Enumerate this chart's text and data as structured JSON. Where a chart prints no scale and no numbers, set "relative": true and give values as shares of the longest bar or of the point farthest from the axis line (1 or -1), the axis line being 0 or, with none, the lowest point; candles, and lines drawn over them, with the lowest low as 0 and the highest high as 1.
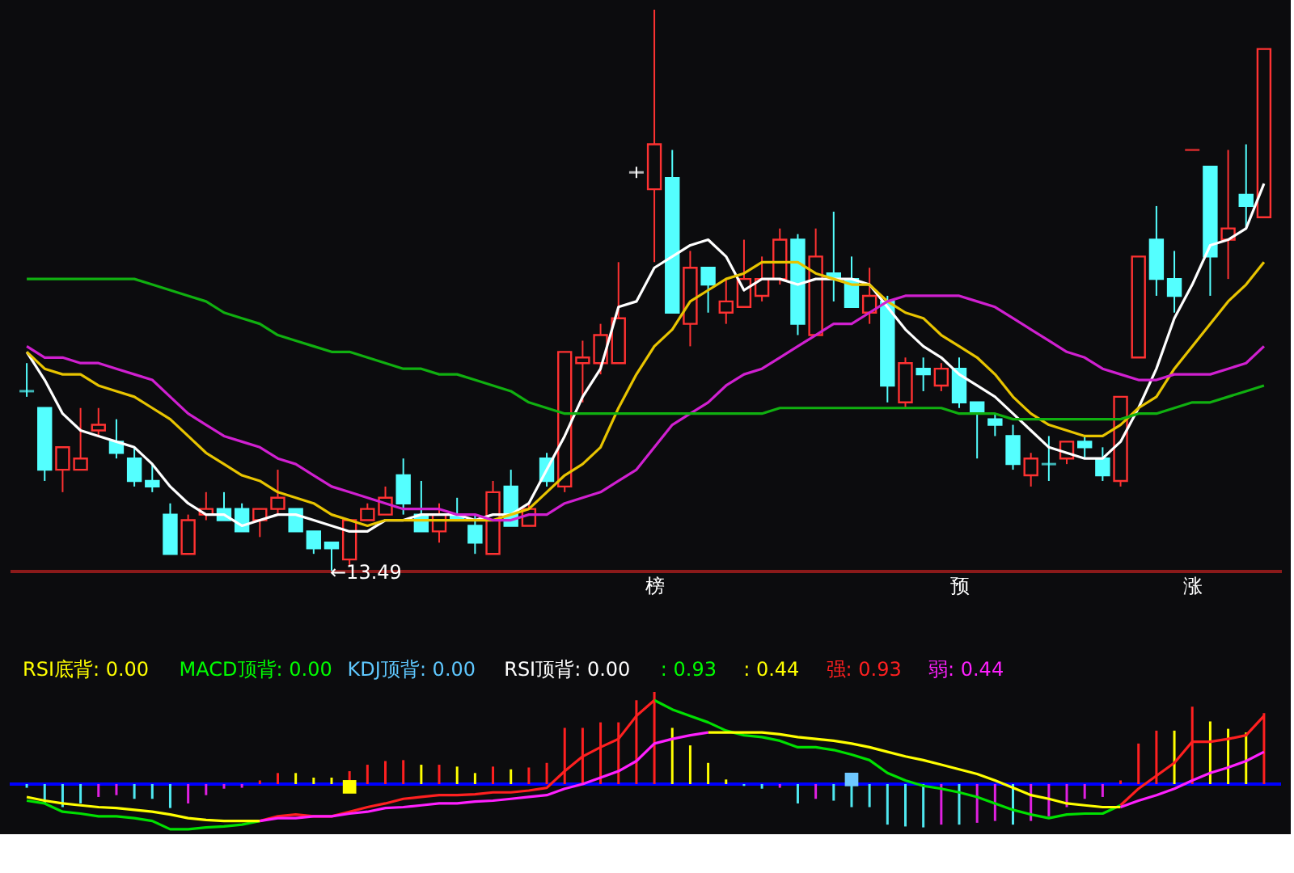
{
  "chart_data": [
    {
      "type": "candlestick",
      "relative": true,
      "categories": [
        null,
        null,
        null,
        null,
        null,
        null,
        null,
        null,
        null,
        null,
        null,
        null,
        null,
        null,
        null,
        null,
        null,
        null,
        null,
        null,
        null,
        null,
        null,
        null,
        null,
        null,
        null,
        null,
        null,
        null,
        null,
        null,
        null,
        null,
        null,
        "榜",
        null,
        null,
        null,
        null,
        null,
        null,
        null,
        null,
        null,
        null,
        null,
        null,
        null,
        null,
        null,
        null,
        "预",
        null,
        null,
        null,
        null,
        null,
        null,
        null,
        null,
        null,
        null,
        null,
        null,
        "涨",
        null,
        null,
        null,
        null
      ],
      "ohlc": [
        [
          0.32,
          0.37,
          0.31,
          0.32
        ],
        [
          0.29,
          0.29,
          0.16,
          0.18
        ],
        [
          0.18,
          0.22,
          0.14,
          0.22
        ],
        [
          0.18,
          0.29,
          0.18,
          0.2
        ],
        [
          0.25,
          0.29,
          0.24,
          0.26
        ],
        [
          0.23,
          0.27,
          0.2,
          0.21
        ],
        [
          0.2,
          0.22,
          0.15,
          0.16
        ],
        [
          0.16,
          0.19,
          0.14,
          0.15
        ],
        [
          0.1,
          0.12,
          0.03,
          0.03
        ],
        [
          0.03,
          0.1,
          0.03,
          0.09
        ],
        [
          0.1,
          0.14,
          0.09,
          0.11
        ],
        [
          0.11,
          0.14,
          0.09,
          0.09
        ],
        [
          0.11,
          0.12,
          0.07,
          0.07
        ],
        [
          0.09,
          0.11,
          0.06,
          0.11
        ],
        [
          0.11,
          0.18,
          0.1,
          0.13
        ],
        [
          0.11,
          0.11,
          0.07,
          0.07
        ],
        [
          0.07,
          0.07,
          0.03,
          0.04
        ],
        [
          0.05,
          0.05,
          0,
          0.04
        ],
        [
          0.02,
          0.09,
          0.01,
          0.09
        ],
        [
          0.09,
          0.12,
          0.09,
          0.11
        ],
        [
          0.1,
          0.15,
          0.1,
          0.13
        ],
        [
          0.17,
          0.2,
          0.1,
          0.12
        ],
        [
          0.1,
          0.16,
          0.07,
          0.07
        ],
        [
          0.07,
          0.12,
          0.05,
          0.1
        ],
        [
          0.1,
          0.13,
          0.09,
          0.09
        ],
        [
          0.08,
          0.1,
          0.03,
          0.05
        ],
        [
          0.03,
          0.16,
          0.03,
          0.14
        ],
        [
          0.15,
          0.18,
          0.08,
          0.08
        ],
        [
          0.08,
          0.12,
          0.08,
          0.11
        ],
        [
          0.2,
          0.21,
          0.15,
          0.16
        ],
        [
          0.15,
          0.39,
          0.14,
          0.39
        ],
        [
          0.37,
          0.41,
          0.3,
          0.38
        ],
        [
          0.37,
          0.44,
          0.35,
          0.42
        ],
        [
          0.37,
          0.55,
          0.37,
          0.45
        ],
        [
          0.71,
          0.72,
          0.7,
          0.71
        ],
        [
          0.68,
          1,
          0.55,
          0.76
        ],
        [
          0.7,
          0.75,
          0.46,
          0.46
        ],
        [
          0.44,
          0.57,
          0.4,
          0.54
        ],
        [
          0.54,
          0.54,
          0.46,
          0.51
        ],
        [
          0.46,
          0.52,
          0.44,
          0.48
        ],
        [
          0.47,
          0.59,
          0.47,
          0.52
        ],
        [
          0.49,
          0.56,
          0.48,
          0.52
        ],
        [
          0.52,
          0.61,
          0.51,
          0.59
        ],
        [
          0.59,
          0.6,
          0.42,
          0.44
        ],
        [
          0.42,
          0.61,
          0.42,
          0.56
        ],
        [
          0.53,
          0.64,
          0.48,
          0.52
        ],
        [
          0.52,
          0.56,
          0.47,
          0.47
        ],
        [
          0.46,
          0.54,
          0.44,
          0.49
        ],
        [
          0.48,
          0.49,
          0.3,
          0.33
        ],
        [
          0.3,
          0.38,
          0.29,
          0.37
        ],
        [
          0.36,
          0.38,
          0.32,
          0.35
        ],
        [
          0.33,
          0.37,
          0.32,
          0.36
        ],
        [
          0.36,
          0.38,
          0.29,
          0.3
        ],
        [
          0.3,
          0.3,
          0.2,
          0.28
        ],
        [
          0.27,
          0.28,
          0.24,
          0.26
        ],
        [
          0.24,
          0.26,
          0.18,
          0.19
        ],
        [
          0.17,
          0.21,
          0.15,
          0.2
        ],
        [
          0.19,
          0.24,
          0.16,
          0.19
        ],
        [
          0.2,
          0.23,
          0.19,
          0.23
        ],
        [
          0.23,
          0.24,
          0.2,
          0.22
        ],
        [
          0.2,
          0.22,
          0.16,
          0.17
        ],
        [
          0.16,
          0.31,
          0.15,
          0.31
        ],
        [
          0.38,
          0.56,
          0.38,
          0.56
        ],
        [
          0.59,
          0.65,
          0.49,
          0.52
        ],
        [
          0.52,
          0.57,
          0.46,
          0.49
        ],
        [
          0.75,
          0.75,
          0.75,
          0.75
        ],
        [
          0.72,
          0.72,
          0.49,
          0.56
        ],
        [
          0.59,
          0.75,
          0.52,
          0.61
        ],
        [
          0.67,
          0.76,
          0.61,
          0.65
        ],
        [
          0.63,
          0.93,
          0.63,
          0.93
        ]
      ],
      "colors": [
        "#54ffff",
        "#54ffff",
        "#ff3232",
        "#ff3232",
        "#ff3232",
        "#54ffff",
        "#54ffff",
        "#54ffff",
        "#54ffff",
        "#ff3232",
        "#ff3232",
        "#54ffff",
        "#54ffff",
        "#ff3232",
        "#ff3232",
        "#54ffff",
        "#54ffff",
        "#54ffff",
        "#ff3232",
        "#ff3232",
        "#ff3232",
        "#54ffff",
        "#54ffff",
        "#ff3232",
        "#54ffff",
        "#54ffff",
        "#ff3232",
        "#54ffff",
        "#ff3232",
        "#54ffff",
        "#ff3232",
        "#ff3232",
        "#ff3232",
        "#ff3232",
        "#ffffff",
        "#ff3232",
        "#54ffff",
        "#ff3232",
        "#54ffff",
        "#ff3232",
        "#ff3232",
        "#ff3232",
        "#ff3232",
        "#54ffff",
        "#ff3232",
        "#54ffff",
        "#54ffff",
        "#ff3232",
        "#54ffff",
        "#ff3232",
        "#54ffff",
        "#ff3232",
        "#54ffff",
        "#54ffff",
        "#54ffff",
        "#54ffff",
        "#ff3232",
        "#54ffff",
        "#ff3232",
        "#54ffff",
        "#54ffff",
        "#ff3232",
        "#ff3232",
        "#54ffff",
        "#54ffff",
        "#ff3232",
        "#54ffff",
        "#ff3232",
        "#54ffff",
        "#ff3232"
      ],
      "series": [
        {
          "type": "line",
          "color": "#ffffff",
          "values": [
            0.39,
            0.34,
            0.28,
            0.25,
            0.24,
            0.23,
            0.22,
            0.19,
            0.15,
            0.12,
            0.1,
            0.1,
            0.08,
            0.09,
            0.1,
            0.1,
            0.09,
            0.08,
            0.07,
            0.07,
            0.09,
            0.09,
            0.1,
            0.1,
            0.1,
            0.09,
            0.1,
            0.1,
            0.12,
            0.18,
            0.24,
            0.31,
            0.36,
            0.47,
            0.48,
            0.54,
            0.56,
            0.58,
            0.59,
            0.56,
            0.5,
            0.52,
            0.52,
            0.51,
            0.52,
            0.52,
            0.52,
            0.51,
            0.47,
            0.43,
            0.4,
            0.38,
            0.35,
            0.33,
            0.31,
            0.28,
            0.25,
            0.22,
            0.21,
            0.2,
            0.2,
            0.23,
            0.29,
            0.36,
            0.45,
            0.51,
            0.58,
            0.59,
            0.61,
            0.69
          ]
        },
        {
          "type": "line",
          "color": "#e8c400",
          "values": [
            0.39,
            0.36,
            0.35,
            0.35,
            0.33,
            0.32,
            0.31,
            0.29,
            0.27,
            0.24,
            0.21,
            0.19,
            0.17,
            0.16,
            0.14,
            0.13,
            0.12,
            0.1,
            0.09,
            0.08,
            0.09,
            0.09,
            0.09,
            0.09,
            0.09,
            0.09,
            0.09,
            0.1,
            0.11,
            0.14,
            0.17,
            0.19,
            0.22,
            0.29,
            0.35,
            0.4,
            0.43,
            0.48,
            0.5,
            0.52,
            0.53,
            0.55,
            0.55,
            0.55,
            0.53,
            0.52,
            0.51,
            0.51,
            0.48,
            0.46,
            0.45,
            0.42,
            0.4,
            0.38,
            0.35,
            0.31,
            0.28,
            0.26,
            0.25,
            0.24,
            0.24,
            0.26,
            0.29,
            0.31,
            0.36,
            0.4,
            0.44,
            0.48,
            0.51,
            0.55
          ]
        },
        {
          "type": "line",
          "color": "#d020d0",
          "values": [
            0.4,
            0.38,
            0.38,
            0.37,
            0.37,
            0.36,
            0.35,
            0.34,
            0.31,
            0.28,
            0.26,
            0.24,
            0.23,
            0.22,
            0.2,
            0.19,
            0.17,
            0.15,
            0.14,
            0.13,
            0.12,
            0.11,
            0.11,
            0.11,
            0.1,
            0.1,
            0.09,
            0.09,
            0.1,
            0.1,
            0.12,
            0.13,
            0.14,
            0.16,
            0.18,
            0.22,
            0.26,
            0.28,
            0.3,
            0.33,
            0.35,
            0.36,
            0.38,
            0.4,
            0.42,
            0.44,
            0.44,
            0.46,
            0.48,
            0.49,
            0.49,
            0.49,
            0.49,
            0.48,
            0.47,
            0.45,
            0.43,
            0.41,
            0.39,
            0.38,
            0.36,
            0.35,
            0.34,
            0.34,
            0.35,
            0.35,
            0.35,
            0.36,
            0.37,
            0.4
          ]
        },
        {
          "type": "line",
          "color": "#10b010",
          "values": [
            0.52,
            0.52,
            0.52,
            0.52,
            0.52,
            0.52,
            0.52,
            0.51,
            0.5,
            0.49,
            0.48,
            0.46,
            0.45,
            0.44,
            0.42,
            0.41,
            0.4,
            0.39,
            0.39,
            0.38,
            0.37,
            0.36,
            0.36,
            0.35,
            0.35,
            0.34,
            0.33,
            0.32,
            0.3,
            0.29,
            0.28,
            0.28,
            0.28,
            0.28,
            0.28,
            0.28,
            0.28,
            0.28,
            0.28,
            0.28,
            0.28,
            0.28,
            0.29,
            0.29,
            0.29,
            0.29,
            0.29,
            0.29,
            0.29,
            0.29,
            0.29,
            0.29,
            0.28,
            0.28,
            0.28,
            0.27,
            0.27,
            0.27,
            0.27,
            0.27,
            0.27,
            0.27,
            0.28,
            0.28,
            0.29,
            0.3,
            0.3,
            0.31,
            0.32,
            0.33
          ]
        }
      ],
      "annotations": [
        "←13.49"
      ]
    },
    {
      "type": "bar",
      "relative": true,
      "ref_lines": [
        {
          "axis": "y",
          "value": 0,
          "color": "#0000ff"
        }
      ],
      "categories": [
        null,
        null,
        null,
        null,
        null,
        null,
        null,
        null,
        null,
        null,
        null,
        null,
        null,
        null,
        null,
        null,
        null,
        null,
        null,
        null,
        null,
        null,
        null,
        null,
        null,
        null,
        null,
        null,
        null,
        null,
        null,
        null,
        null,
        null,
        null,
        null,
        null,
        null,
        null,
        null,
        null,
        null,
        null,
        null,
        null,
        null,
        null,
        null,
        null,
        null,
        null,
        null,
        null,
        null,
        null,
        null,
        null,
        null,
        null,
        null,
        null,
        null,
        null,
        null,
        null,
        null,
        null,
        null,
        null,
        null
      ],
      "series": [
        {
          "type": "bar",
          "values": [
            -0.04,
            -0.21,
            -0.25,
            -0.21,
            -0.14,
            -0.12,
            -0.16,
            -0.16,
            -0.26,
            -0.21,
            -0.12,
            -0.05,
            -0.04,
            0.04,
            0.12,
            0.12,
            0.07,
            0.07,
            0.14,
            0.21,
            0.25,
            0.26,
            0.21,
            0.21,
            0.19,
            0.12,
            0.19,
            0.16,
            0.18,
            0.23,
            0.61,
            0.61,
            0.67,
            0.67,
            0.91,
            1,
            0.61,
            0.42,
            0.23,
            0.05,
            -0.02,
            -0.05,
            -0.04,
            -0.21,
            -0.16,
            -0.18,
            -0.25,
            -0.25,
            -0.44,
            -0.46,
            -0.47,
            -0.44,
            -0.44,
            -0.42,
            -0.4,
            -0.44,
            -0.4,
            -0.35,
            -0.25,
            -0.16,
            -0.14,
            0.04,
            0.44,
            0.58,
            0.58,
            0.84,
            0.68,
            0.6,
            0.56,
            0.77
          ],
          "colors": [
            "#4fe8f0",
            "#4fe8f0",
            "#4fe8f0",
            "#4fe8f0",
            "#e020e0",
            "#e020e0",
            "#4fe8f0",
            "#4fe8f0",
            "#4fe8f0",
            "#e020e0",
            "#e020e0",
            "#e020e0",
            "#e020e0",
            "#ff2020",
            "#ff2020",
            "#ffff00",
            "#ffff00",
            "#ffff00",
            "#ff2020",
            "#ff2020",
            "#ff2020",
            "#ff2020",
            "#ffff00",
            "#ff2020",
            "#ffff00",
            "#ffff00",
            "#ff2020",
            "#ffff00",
            "#ff2020",
            "#ff2020",
            "#ff2020",
            "#ff2020",
            "#ff2020",
            "#ff2020",
            "#ff2020",
            "#ff2020",
            "#ffff00",
            "#ffff00",
            "#ffff00",
            "#ffff00",
            "#4fe8f0",
            "#4fe8f0",
            "#e020e0",
            "#4fe8f0",
            "#e020e0",
            "#4fe8f0",
            "#4fe8f0",
            "#4fe8f0",
            "#4fe8f0",
            "#4fe8f0",
            "#4fe8f0",
            "#e020e0",
            "#4fe8f0",
            "#e020e0",
            "#e020e0",
            "#4fe8f0",
            "#e020e0",
            "#e020e0",
            "#e020e0",
            "#e020e0",
            "#e020e0",
            "#ff2020",
            "#ff2020",
            "#ff2020",
            "#ffff00",
            "#ff2020",
            "#ffff00",
            "#ffff00",
            "#ffff00",
            "#ff2020"
          ]
        },
        {
          "type": "line",
          "color": "#00e000",
          "values": [
            -0.18,
            -0.21,
            -0.3,
            -0.32,
            -0.35,
            -0.35,
            -0.37,
            -0.4,
            -0.49,
            -0.49,
            -0.47,
            -0.46,
            -0.44,
            -0.4,
            null,
            null,
            null,
            null,
            null,
            null,
            null,
            null,
            null,
            null,
            null,
            null,
            null,
            null,
            null,
            null,
            null,
            null,
            null,
            null,
            null,
            0.91,
            0.81,
            0.74,
            0.67,
            0.58,
            0.53,
            0.51,
            0.47,
            0.4,
            0.4,
            0.37,
            0.32,
            0.26,
            0.12,
            0.04,
            -0.02,
            -0.05,
            -0.09,
            -0.14,
            -0.21,
            -0.28,
            -0.33,
            -0.37,
            -0.33,
            -0.32,
            -0.32,
            -0.23,
            null,
            null,
            null,
            null,
            null,
            null,
            null,
            null
          ]
        },
        {
          "type": "line",
          "color": "#ff2020",
          "values": [
            null,
            null,
            null,
            null,
            null,
            null,
            null,
            null,
            null,
            null,
            null,
            null,
            null,
            -0.4,
            -0.35,
            -0.33,
            -0.35,
            -0.35,
            -0.3,
            -0.25,
            -0.21,
            -0.16,
            -0.14,
            -0.12,
            -0.12,
            -0.11,
            -0.09,
            -0.09,
            -0.07,
            -0.04,
            0.14,
            0.3,
            0.4,
            0.49,
            0.74,
            0.91,
            null,
            null,
            null,
            null,
            null,
            null,
            null,
            null,
            null,
            null,
            null,
            null,
            null,
            null,
            null,
            null,
            null,
            null,
            null,
            null,
            null,
            null,
            null,
            null,
            null,
            -0.23,
            -0.05,
            0.09,
            0.23,
            0.46,
            0.46,
            0.49,
            0.53,
            0.74
          ]
        },
        {
          "type": "line",
          "color": "#ffff00",
          "values": [
            -0.14,
            -0.18,
            -0.21,
            -0.23,
            -0.25,
            -0.26,
            -0.28,
            -0.3,
            -0.33,
            -0.37,
            -0.39,
            -0.4,
            -0.4,
            -0.4,
            null,
            null,
            null,
            null,
            null,
            null,
            null,
            null,
            null,
            null,
            null,
            null,
            null,
            null,
            null,
            null,
            null,
            null,
            null,
            null,
            null,
            null,
            null,
            null,
            0.56,
            0.56,
            0.56,
            0.56,
            0.54,
            0.51,
            0.49,
            0.47,
            0.44,
            0.4,
            0.35,
            0.3,
            0.26,
            0.21,
            0.16,
            0.11,
            0.04,
            -0.04,
            -0.12,
            -0.16,
            -0.21,
            -0.23,
            -0.25,
            -0.25,
            null,
            null,
            null,
            null,
            null,
            null,
            null,
            null
          ]
        },
        {
          "type": "line",
          "color": "#ff20ff",
          "values": [
            null,
            null,
            null,
            null,
            null,
            null,
            null,
            null,
            null,
            null,
            null,
            null,
            null,
            -0.4,
            -0.37,
            -0.37,
            -0.35,
            -0.35,
            -0.32,
            -0.3,
            -0.26,
            -0.25,
            -0.23,
            -0.21,
            -0.21,
            -0.19,
            -0.18,
            -0.16,
            -0.14,
            -0.12,
            -0.05,
            0,
            0.07,
            0.14,
            0.25,
            0.44,
            0.49,
            0.53,
            0.56,
            null,
            null,
            null,
            null,
            null,
            null,
            null,
            null,
            null,
            null,
            null,
            null,
            null,
            null,
            null,
            null,
            null,
            null,
            null,
            null,
            null,
            null,
            -0.25,
            -0.18,
            -0.12,
            -0.05,
            0.04,
            0.12,
            0.18,
            0.25,
            0.35
          ]
        },
        {
          "type": "scatter",
          "marker": "square",
          "color": "#ffff00",
          "values": [
            null,
            null,
            null,
            null,
            null,
            null,
            null,
            null,
            null,
            null,
            null,
            null,
            null,
            null,
            null,
            null,
            null,
            null,
            -0.03,
            null,
            null,
            null,
            null,
            null,
            null,
            null,
            null,
            null,
            null,
            null,
            null,
            null,
            null,
            null,
            null,
            null,
            null,
            null,
            null,
            null,
            null,
            null,
            null,
            null,
            null,
            null,
            null,
            null,
            null,
            null,
            null,
            null,
            null,
            null,
            null,
            null,
            null,
            null,
            null,
            null,
            null,
            null,
            null,
            null,
            null,
            null,
            null,
            null,
            null,
            null
          ]
        },
        {
          "type": "scatter",
          "marker": "square",
          "color": "#6ec8ff",
          "values": [
            null,
            null,
            null,
            null,
            null,
            null,
            null,
            null,
            null,
            null,
            null,
            null,
            null,
            null,
            null,
            null,
            null,
            null,
            null,
            null,
            null,
            null,
            null,
            null,
            null,
            null,
            null,
            null,
            null,
            null,
            null,
            null,
            null,
            null,
            null,
            null,
            null,
            null,
            null,
            null,
            null,
            null,
            null,
            null,
            null,
            null,
            0.05,
            null,
            null,
            null,
            null,
            null,
            null,
            null,
            null,
            null,
            null,
            null,
            null,
            null,
            null,
            null,
            null,
            null,
            null,
            null,
            null,
            null,
            null,
            null
          ]
        }
      ],
      "annotations": [
        "RSI底背: 0.00",
        "MACD顶背: 0.00",
        "KDJ顶背: 0.00",
        "RSI顶背: 0.00",
        ": 0.93",
        ": 0.44",
        "强: 0.93",
        "弱: 0.44"
      ]
    }
  ]
}
